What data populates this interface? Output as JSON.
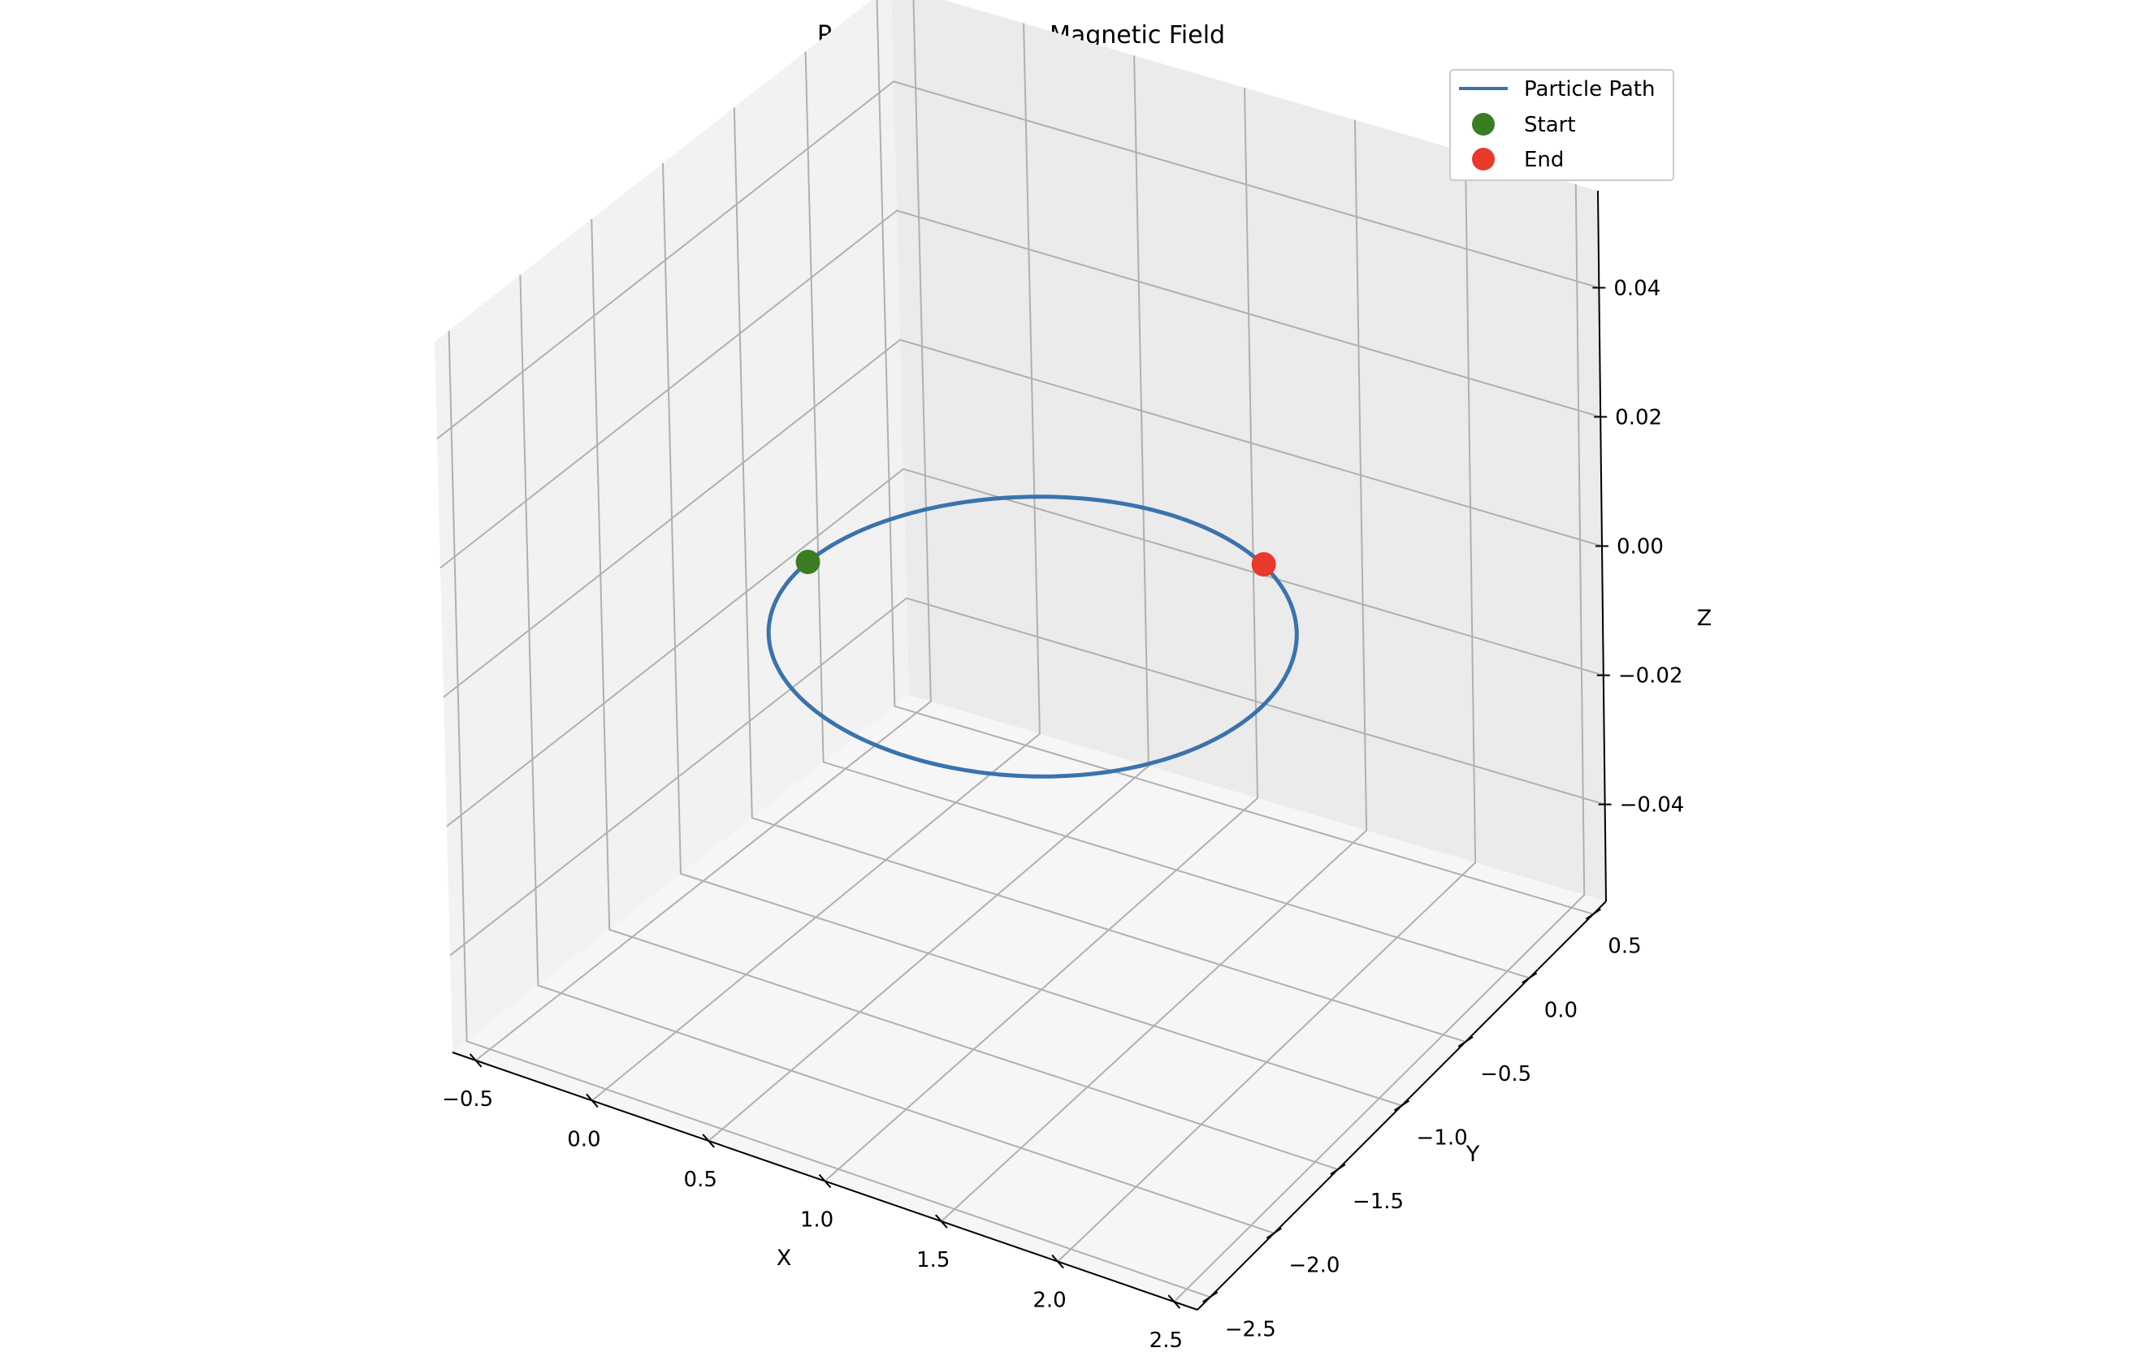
{
  "chart_data": {
    "type": "line",
    "title": "Particle in Uniform Magnetic Field",
    "xlabel": "X",
    "ylabel": "Y",
    "zlabel": "Z",
    "xlim": [
      -0.6,
      2.6
    ],
    "ylim": [
      -2.6,
      0.6
    ],
    "zlim": [
      -0.055,
      0.055
    ],
    "xticks": [
      -0.5,
      0.0,
      0.5,
      1.0,
      1.5,
      2.0,
      2.5
    ],
    "yticks": [
      -2.5,
      -2.0,
      -1.5,
      -1.0,
      -0.5,
      0.0,
      0.5
    ],
    "zticks": [
      -0.04,
      -0.02,
      0.0,
      0.02,
      0.04
    ],
    "xtick_labels": [
      "−0.5",
      "0.0",
      "0.5",
      "1.0",
      "1.5",
      "2.0",
      "2.5"
    ],
    "ytick_labels": [
      "−2.5",
      "−2.0",
      "−1.5",
      "−1.0",
      "−0.5",
      "0.0",
      "0.5"
    ],
    "ztick_labels": [
      "−0.04",
      "−0.02",
      "0.00",
      "0.02",
      "0.04"
    ],
    "grid": true,
    "legend_position": "top-right",
    "series": [
      {
        "name": "Particle Path",
        "kind": "circle",
        "center": [
          1.0,
          -1.0,
          0.0
        ],
        "radius": 1.0,
        "color": "#3a73ac"
      },
      {
        "name": "Start",
        "kind": "point",
        "x": 0.0,
        "y": -1.0,
        "z": 0.0,
        "color": "#3a7d22"
      },
      {
        "name": "End",
        "kind": "point",
        "x": 1.5,
        "y": -0.13,
        "z": 0.0,
        "color": "#e8392b"
      }
    ]
  }
}
